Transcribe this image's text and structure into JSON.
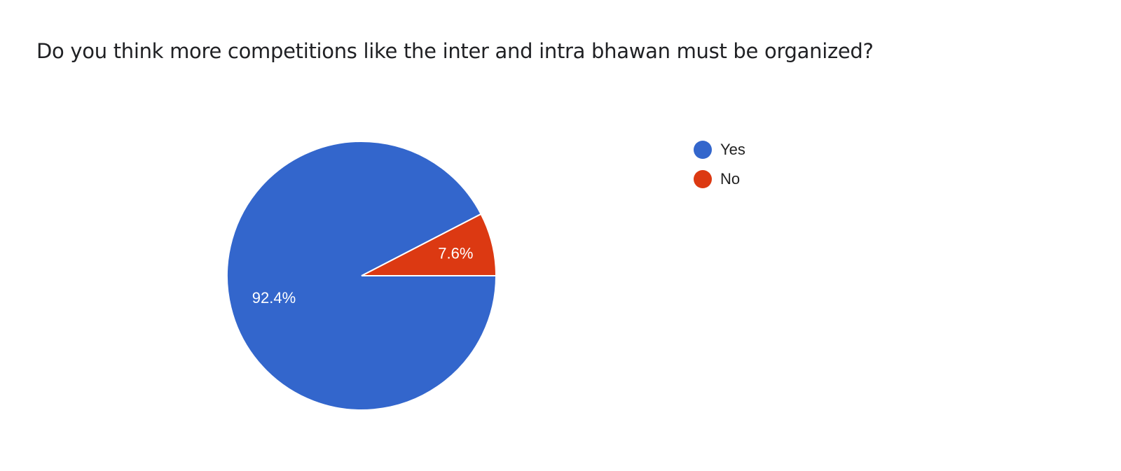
{
  "chart_data": {
    "type": "pie",
    "title": "Do you think more competitions like the inter and intra bhawan must be organized?",
    "slices": [
      {
        "label": "Yes",
        "value": 92.4,
        "data_label": "92.4%",
        "color": "#3366cc"
      },
      {
        "label": "No",
        "value": 7.6,
        "data_label": "7.6%",
        "color": "#dc3912"
      }
    ],
    "legend_position": "right"
  }
}
